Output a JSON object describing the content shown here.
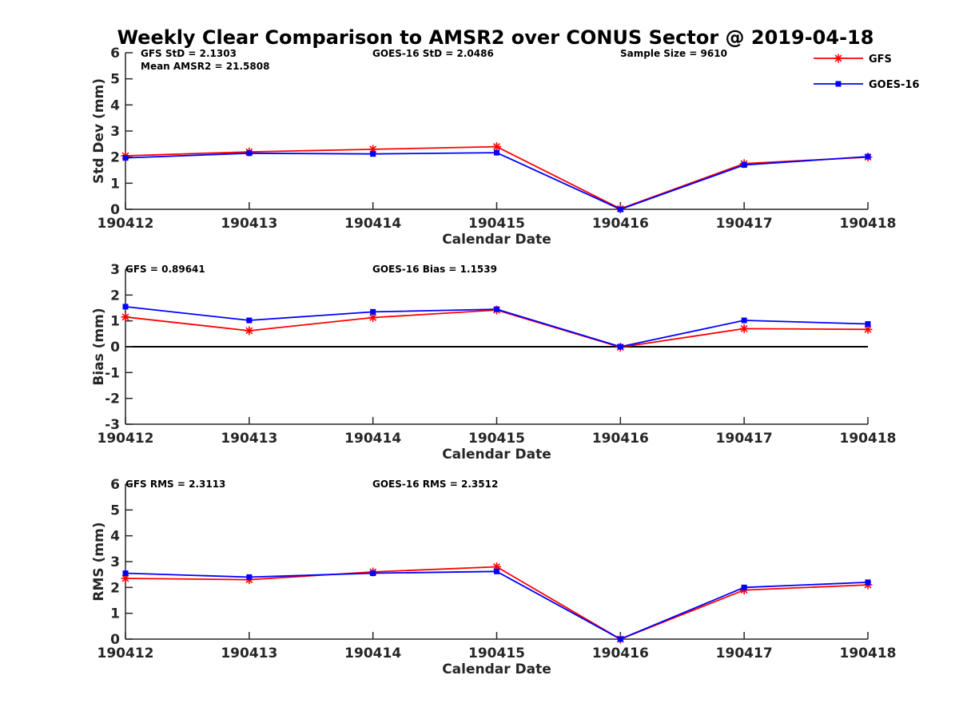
{
  "title": "Weekly Clear Comparison to AMSR2 over CONUS Sector @ 2019-04-18",
  "colors": {
    "GFS": "#ff0000",
    "GOES-16": "#0000ff",
    "axis": "#262626"
  },
  "legend": {
    "placement": "top-right",
    "entries": [
      {
        "name": "GFS",
        "marker": "asterisk",
        "color": "#ff0000"
      },
      {
        "name": "GOES-16",
        "marker": "square",
        "color": "#0000ff"
      }
    ]
  },
  "chart_data": [
    {
      "type": "line",
      "categories": [
        "190412",
        "190413",
        "190414",
        "190415",
        "190416",
        "190417",
        "190418"
      ],
      "xlabel": "Calendar Date",
      "ylabel": "Std Dev (mm)",
      "ylim": [
        0,
        6
      ],
      "yticks": [
        "0",
        "1",
        "2",
        "3",
        "4",
        "5",
        "6"
      ],
      "zero_line": false,
      "annotations": [
        "GFS StD = 2.1303",
        "GOES-16 StD = 2.0486",
        "Sample Size = 9610",
        "Mean AMSR2 = 21.5808"
      ],
      "series": [
        {
          "name": "GFS",
          "values": [
            2.05,
            2.2,
            2.3,
            2.4,
            0.02,
            1.75,
            2.0
          ]
        },
        {
          "name": "GOES-16",
          "values": [
            1.97,
            2.15,
            2.12,
            2.17,
            0.0,
            1.7,
            2.02
          ]
        }
      ]
    },
    {
      "type": "line",
      "categories": [
        "190412",
        "190413",
        "190414",
        "190415",
        "190416",
        "190417",
        "190418"
      ],
      "xlabel": "Calendar Date",
      "ylabel": "Bias (mm)",
      "ylim": [
        -3,
        3
      ],
      "yticks": [
        "-3",
        "-2",
        "-1",
        "0",
        "1",
        "2",
        "3"
      ],
      "zero_line": true,
      "annotations": [
        "GFS = 0.89641",
        "GOES-16 Bias  = 1.1539"
      ],
      "series": [
        {
          "name": "GFS",
          "values": [
            1.15,
            0.62,
            1.13,
            1.42,
            -0.02,
            0.7,
            0.67
          ]
        },
        {
          "name": "GOES-16",
          "values": [
            1.55,
            1.02,
            1.35,
            1.45,
            0.0,
            1.02,
            0.88
          ]
        }
      ]
    },
    {
      "type": "line",
      "categories": [
        "190412",
        "190413",
        "190414",
        "190415",
        "190416",
        "190417",
        "190418"
      ],
      "xlabel": "Calendar Date",
      "ylabel": "RMS (mm)",
      "ylim": [
        0,
        6
      ],
      "yticks": [
        "0",
        "1",
        "2",
        "3",
        "4",
        "5",
        "6"
      ],
      "zero_line": false,
      "annotations": [
        "GFS RMS = 2.3113",
        "GOES-16 RMS = 2.3512"
      ],
      "series": [
        {
          "name": "GFS",
          "values": [
            2.35,
            2.3,
            2.6,
            2.8,
            0.0,
            1.9,
            2.1
          ]
        },
        {
          "name": "GOES-16",
          "values": [
            2.55,
            2.4,
            2.55,
            2.62,
            0.0,
            2.0,
            2.2
          ]
        }
      ]
    }
  ]
}
